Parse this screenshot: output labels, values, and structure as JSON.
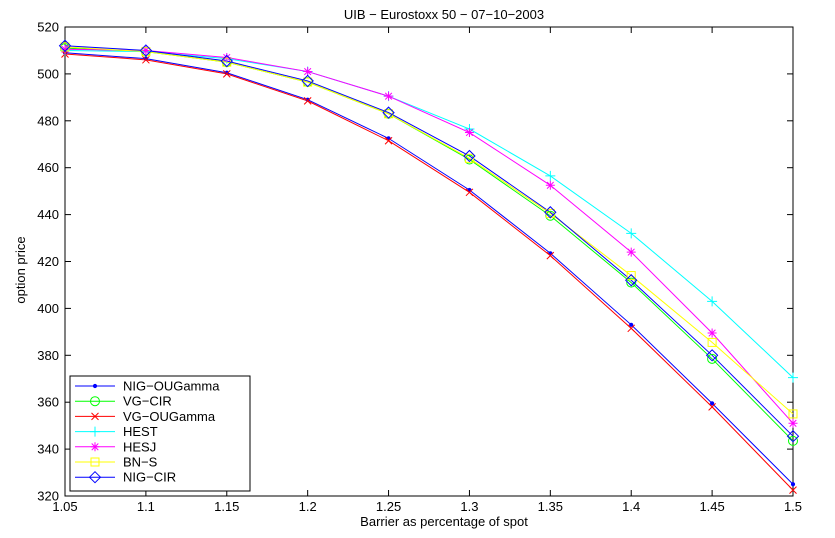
{
  "chart_data": {
    "type": "line",
    "title": "UIB − Eurostoxx 50 − 07−10−2003",
    "xlabel": "Barrier as percentage of spot",
    "ylabel": "option price",
    "x": [
      1.05,
      1.1,
      1.15,
      1.2,
      1.25,
      1.3,
      1.35,
      1.4,
      1.45,
      1.5
    ],
    "xlim": [
      1.05,
      1.5
    ],
    "ylim": [
      320,
      520
    ],
    "xticks": [
      "1.05",
      "1.1",
      "1.15",
      "1.2",
      "1.25",
      "1.3",
      "1.35",
      "1.4",
      "1.45",
      "1.5"
    ],
    "yticks": [
      "320",
      "340",
      "360",
      "380",
      "400",
      "420",
      "440",
      "460",
      "480",
      "500",
      "520"
    ],
    "grid": false,
    "legend_position": "bottom-left",
    "series": [
      {
        "name": "NIG−OUGamma",
        "color": "#0000ff",
        "marker": "point",
        "values": [
          509,
          506.5,
          500.5,
          489,
          472.5,
          450.5,
          423.5,
          393,
          359.5,
          325
        ]
      },
      {
        "name": "VG−CIR",
        "color": "#00ff00",
        "marker": "circle",
        "values": [
          511,
          509.5,
          505,
          496.5,
          483,
          463.5,
          439.5,
          411,
          378.5,
          343.5
        ]
      },
      {
        "name": "VG−OUGamma",
        "color": "#ff0000",
        "marker": "x",
        "values": [
          508.5,
          506,
          500,
          488.5,
          471.5,
          449.5,
          422.5,
          391.5,
          358,
          322.5
        ]
      },
      {
        "name": "HEST",
        "color": "#00ffff",
        "marker": "plus",
        "values": [
          510,
          509.5,
          506.5,
          501,
          490.5,
          476.5,
          456.5,
          432,
          403,
          370.5
        ]
      },
      {
        "name": "HESJ",
        "color": "#ff00ff",
        "marker": "star",
        "values": [
          510.5,
          510,
          507,
          501,
          490.5,
          475,
          452.5,
          424,
          389.5,
          351
        ]
      },
      {
        "name": "BN−S",
        "color": "#ffff00",
        "marker": "square",
        "values": [
          511.5,
          509.5,
          505,
          496.5,
          483,
          464,
          440.5,
          414,
          385.5,
          355
        ]
      },
      {
        "name": "NIG−CIR",
        "color": "#0000ff",
        "marker": "diamond",
        "values": [
          512,
          510,
          505.5,
          497,
          483.5,
          465,
          441,
          412,
          380,
          345.5
        ]
      }
    ]
  }
}
